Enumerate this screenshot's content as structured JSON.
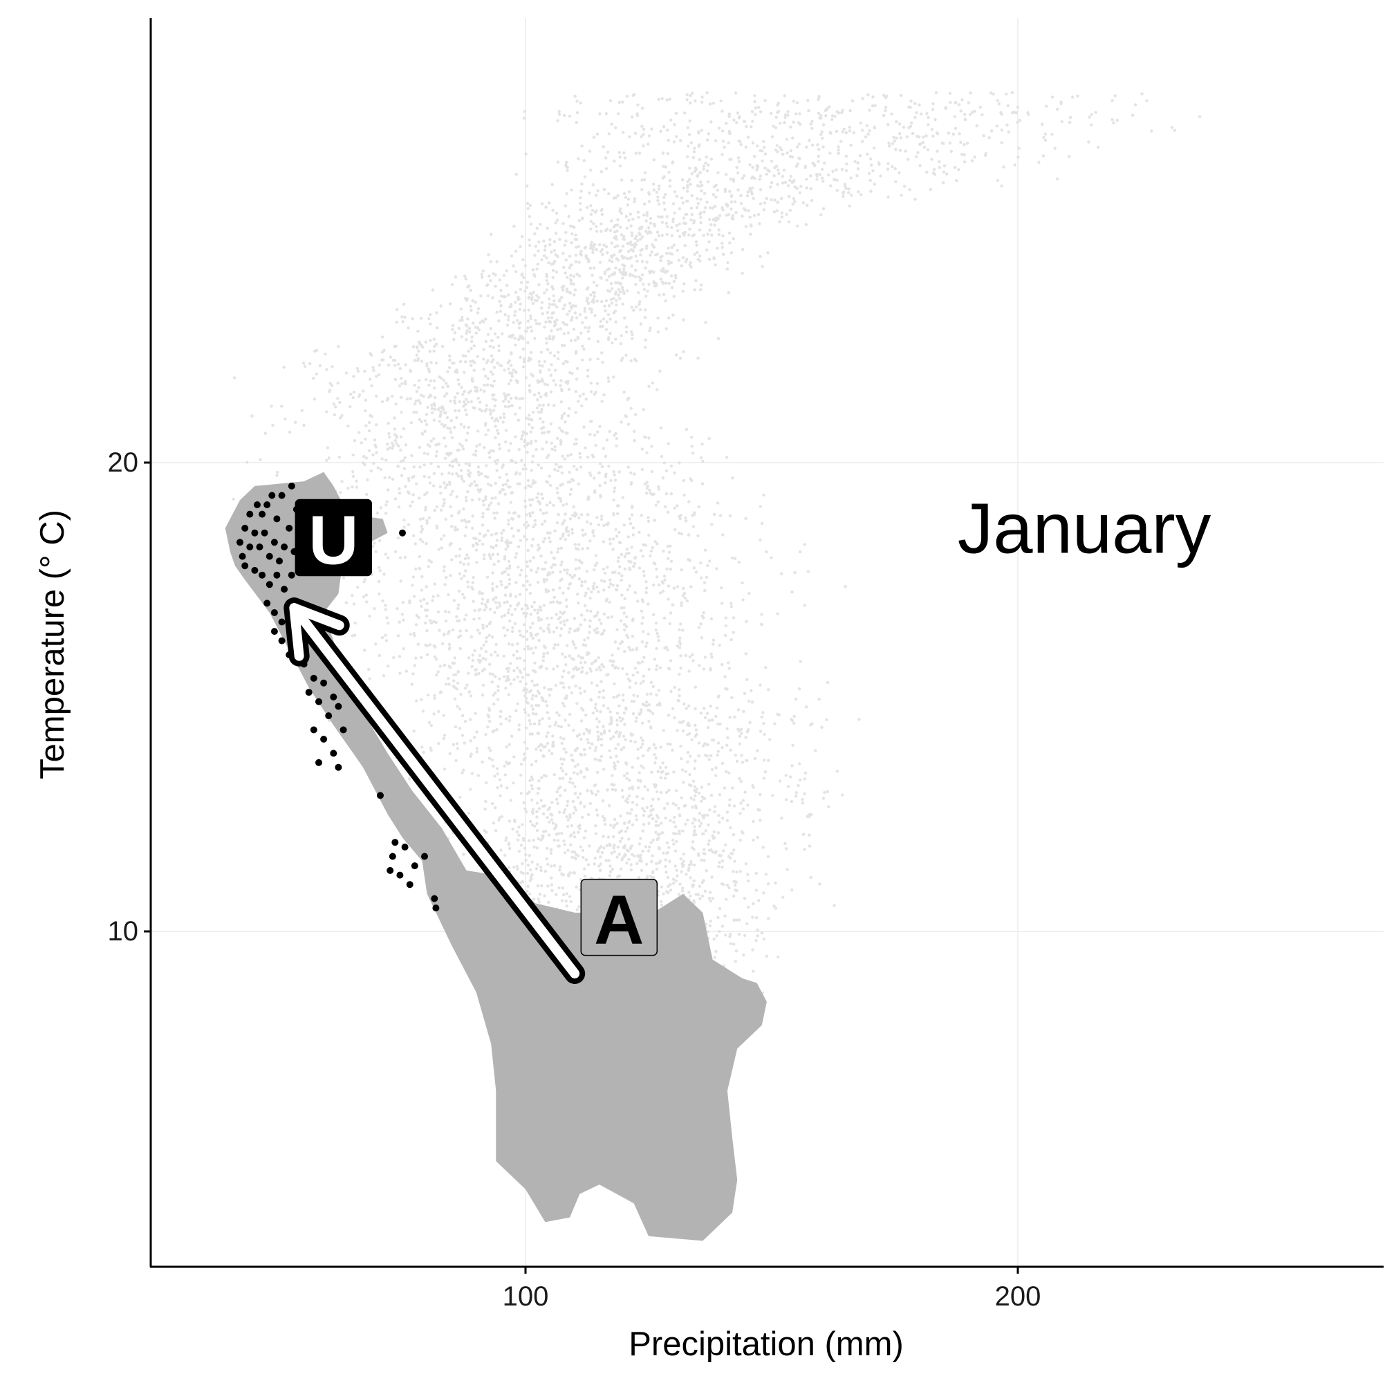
{
  "chart_data": {
    "type": "scatter",
    "title": "",
    "xlabel": "Precipitation (mm)",
    "ylabel": "Temperature (° C)",
    "xlim": [
      24,
      274
    ],
    "ylim": [
      2.8,
      29.6
    ],
    "x_ticks": [
      100,
      200
    ],
    "y_ticks": [
      10,
      20
    ],
    "grid": true,
    "annotation": "January",
    "colors": {
      "background_points": "#e3e3e3",
      "region": "#b3b3b3",
      "highlighted_points": "#000000",
      "arrow": "#ffffff",
      "arrow_outline": "#000000",
      "label_A_fill": "#b3b3b3",
      "label_U_fill": "#000000"
    },
    "background_cloud": {
      "description_points_sampled": true,
      "ridge": [
        {
          "y": 27.9,
          "x_min": 70,
          "x_max": 262
        },
        {
          "y": 26.5,
          "x_min": 78,
          "x_max": 240
        },
        {
          "y": 25.0,
          "x_min": 90,
          "x_max": 160
        },
        {
          "y": 23.5,
          "x_min": 70,
          "x_max": 150
        },
        {
          "y": 22.0,
          "x_min": 38,
          "x_max": 140
        },
        {
          "y": 20.5,
          "x_min": 36,
          "x_max": 150
        },
        {
          "y": 19.0,
          "x_min": 36,
          "x_max": 162
        },
        {
          "y": 17.5,
          "x_min": 40,
          "x_max": 168
        },
        {
          "y": 16.0,
          "x_min": 50,
          "x_max": 160
        },
        {
          "y": 14.5,
          "x_min": 56,
          "x_max": 176
        },
        {
          "y": 13.0,
          "x_min": 62,
          "x_max": 176
        },
        {
          "y": 11.5,
          "x_min": 72,
          "x_max": 168
        },
        {
          "y": 10.0,
          "x_min": 82,
          "x_max": 162
        },
        {
          "y": 8.5,
          "x_min": 86,
          "x_max": 150
        },
        {
          "y": 7.5,
          "x_min": 92,
          "x_max": 132
        }
      ]
    },
    "region_polygon": [
      [
        39,
        18.6
      ],
      [
        42,
        19.2
      ],
      [
        45,
        19.5
      ],
      [
        55,
        19.6
      ],
      [
        59,
        19.8
      ],
      [
        61,
        19.5
      ],
      [
        64,
        18.9
      ],
      [
        71,
        18.8
      ],
      [
        72,
        18.5
      ],
      [
        63,
        18.0
      ],
      [
        62,
        17.2
      ],
      [
        59,
        16.8
      ],
      [
        61,
        16.2
      ],
      [
        64,
        15.2
      ],
      [
        72,
        13.8
      ],
      [
        77,
        13.0
      ],
      [
        83,
        12.2
      ],
      [
        88,
        11.3
      ],
      [
        94,
        11.2
      ],
      [
        99,
        10.9
      ],
      [
        102,
        10.6
      ],
      [
        110,
        10.4
      ],
      [
        126,
        10.4
      ],
      [
        132,
        10.8
      ],
      [
        136,
        10.4
      ],
      [
        138,
        9.4
      ],
      [
        144,
        9.0
      ],
      [
        147,
        8.9
      ],
      [
        149,
        8.5
      ],
      [
        148,
        8.0
      ],
      [
        143,
        7.5
      ],
      [
        141,
        6.6
      ],
      [
        142,
        5.6
      ],
      [
        143,
        4.7
      ],
      [
        142,
        4.0
      ],
      [
        136,
        3.4
      ],
      [
        125,
        3.5
      ],
      [
        122,
        4.2
      ],
      [
        115,
        4.6
      ],
      [
        111,
        4.4
      ],
      [
        109,
        3.9
      ],
      [
        104,
        3.8
      ],
      [
        100,
        4.5
      ],
      [
        94,
        5.1
      ],
      [
        94,
        6.6
      ],
      [
        93,
        7.6
      ],
      [
        90,
        8.7
      ],
      [
        85,
        9.7
      ],
      [
        80,
        10.8
      ],
      [
        79,
        11.5
      ],
      [
        75,
        12.0
      ],
      [
        72,
        12.5
      ],
      [
        67,
        13.5
      ],
      [
        61,
        14.4
      ],
      [
        56,
        15.2
      ],
      [
        52,
        16.0
      ],
      [
        48,
        16.8
      ],
      [
        43,
        17.5
      ],
      [
        41,
        17.8
      ],
      [
        40,
        18.1
      ]
    ],
    "highlighted_points": [
      {
        "x": 42.0,
        "y": 18.3
      },
      {
        "x": 43.0,
        "y": 18.6
      },
      {
        "x": 44.0,
        "y": 18.9
      },
      {
        "x": 45.5,
        "y": 19.1
      },
      {
        "x": 46.5,
        "y": 18.9
      },
      {
        "x": 47.5,
        "y": 19.1
      },
      {
        "x": 48.5,
        "y": 19.3
      },
      {
        "x": 49.5,
        "y": 18.8
      },
      {
        "x": 50.5,
        "y": 19.3
      },
      {
        "x": 52.5,
        "y": 19.5
      },
      {
        "x": 53.5,
        "y": 19.0
      },
      {
        "x": 54.0,
        "y": 18.6
      },
      {
        "x": 42.5,
        "y": 18.0
      },
      {
        "x": 44.0,
        "y": 18.2
      },
      {
        "x": 45.0,
        "y": 18.5
      },
      {
        "x": 46.0,
        "y": 18.2
      },
      {
        "x": 47.0,
        "y": 18.5
      },
      {
        "x": 48.0,
        "y": 18.0
      },
      {
        "x": 49.0,
        "y": 18.3
      },
      {
        "x": 50.0,
        "y": 17.9
      },
      {
        "x": 51.0,
        "y": 18.2
      },
      {
        "x": 52.0,
        "y": 18.6
      },
      {
        "x": 53.0,
        "y": 18.1
      },
      {
        "x": 54.5,
        "y": 18.3
      },
      {
        "x": 43.0,
        "y": 17.8
      },
      {
        "x": 45.0,
        "y": 17.7
      },
      {
        "x": 46.5,
        "y": 17.6
      },
      {
        "x": 48.0,
        "y": 17.4
      },
      {
        "x": 49.5,
        "y": 17.6
      },
      {
        "x": 51.0,
        "y": 17.3
      },
      {
        "x": 52.5,
        "y": 17.6
      },
      {
        "x": 54.0,
        "y": 17.8
      },
      {
        "x": 47.5,
        "y": 17.0
      },
      {
        "x": 49.0,
        "y": 16.8
      },
      {
        "x": 50.5,
        "y": 16.6
      },
      {
        "x": 52.0,
        "y": 16.9
      },
      {
        "x": 49.0,
        "y": 16.4
      },
      {
        "x": 50.5,
        "y": 16.2
      },
      {
        "x": 52.0,
        "y": 15.9
      },
      {
        "x": 53.5,
        "y": 16.3
      },
      {
        "x": 55.0,
        "y": 15.7
      },
      {
        "x": 57.0,
        "y": 15.4
      },
      {
        "x": 59.0,
        "y": 15.3
      },
      {
        "x": 61.0,
        "y": 15.0
      },
      {
        "x": 56.0,
        "y": 15.1
      },
      {
        "x": 58.0,
        "y": 14.9
      },
      {
        "x": 60.0,
        "y": 14.6
      },
      {
        "x": 62.0,
        "y": 14.8
      },
      {
        "x": 57.0,
        "y": 14.3
      },
      {
        "x": 59.0,
        "y": 14.1
      },
      {
        "x": 61.0,
        "y": 13.8
      },
      {
        "x": 63.0,
        "y": 14.3
      },
      {
        "x": 58.0,
        "y": 13.6
      },
      {
        "x": 62.0,
        "y": 13.5
      },
      {
        "x": 65.5,
        "y": 15.2
      },
      {
        "x": 75.0,
        "y": 18.5
      },
      {
        "x": 70.5,
        "y": 12.9
      },
      {
        "x": 73.5,
        "y": 11.9
      },
      {
        "x": 73.0,
        "y": 11.6
      },
      {
        "x": 75.5,
        "y": 11.8
      },
      {
        "x": 72.5,
        "y": 11.3
      },
      {
        "x": 74.5,
        "y": 11.2
      },
      {
        "x": 77.5,
        "y": 11.4
      },
      {
        "x": 76.5,
        "y": 11.0
      },
      {
        "x": 79.5,
        "y": 11.6
      },
      {
        "x": 81.5,
        "y": 10.7
      },
      {
        "x": 81.8,
        "y": 10.5
      },
      {
        "x": 58.5,
        "y": 18.5
      },
      {
        "x": 60.5,
        "y": 18.3
      }
    ],
    "arrow": {
      "from": [
        110.0,
        9.1
      ],
      "to": [
        53.0,
        16.9
      ]
    },
    "labels": [
      {
        "text": "A",
        "x": 119,
        "y": 10.3,
        "style": "filled-grey"
      },
      {
        "text": "U",
        "x": 61,
        "y": 18.4,
        "style": "filled-black"
      }
    ]
  }
}
